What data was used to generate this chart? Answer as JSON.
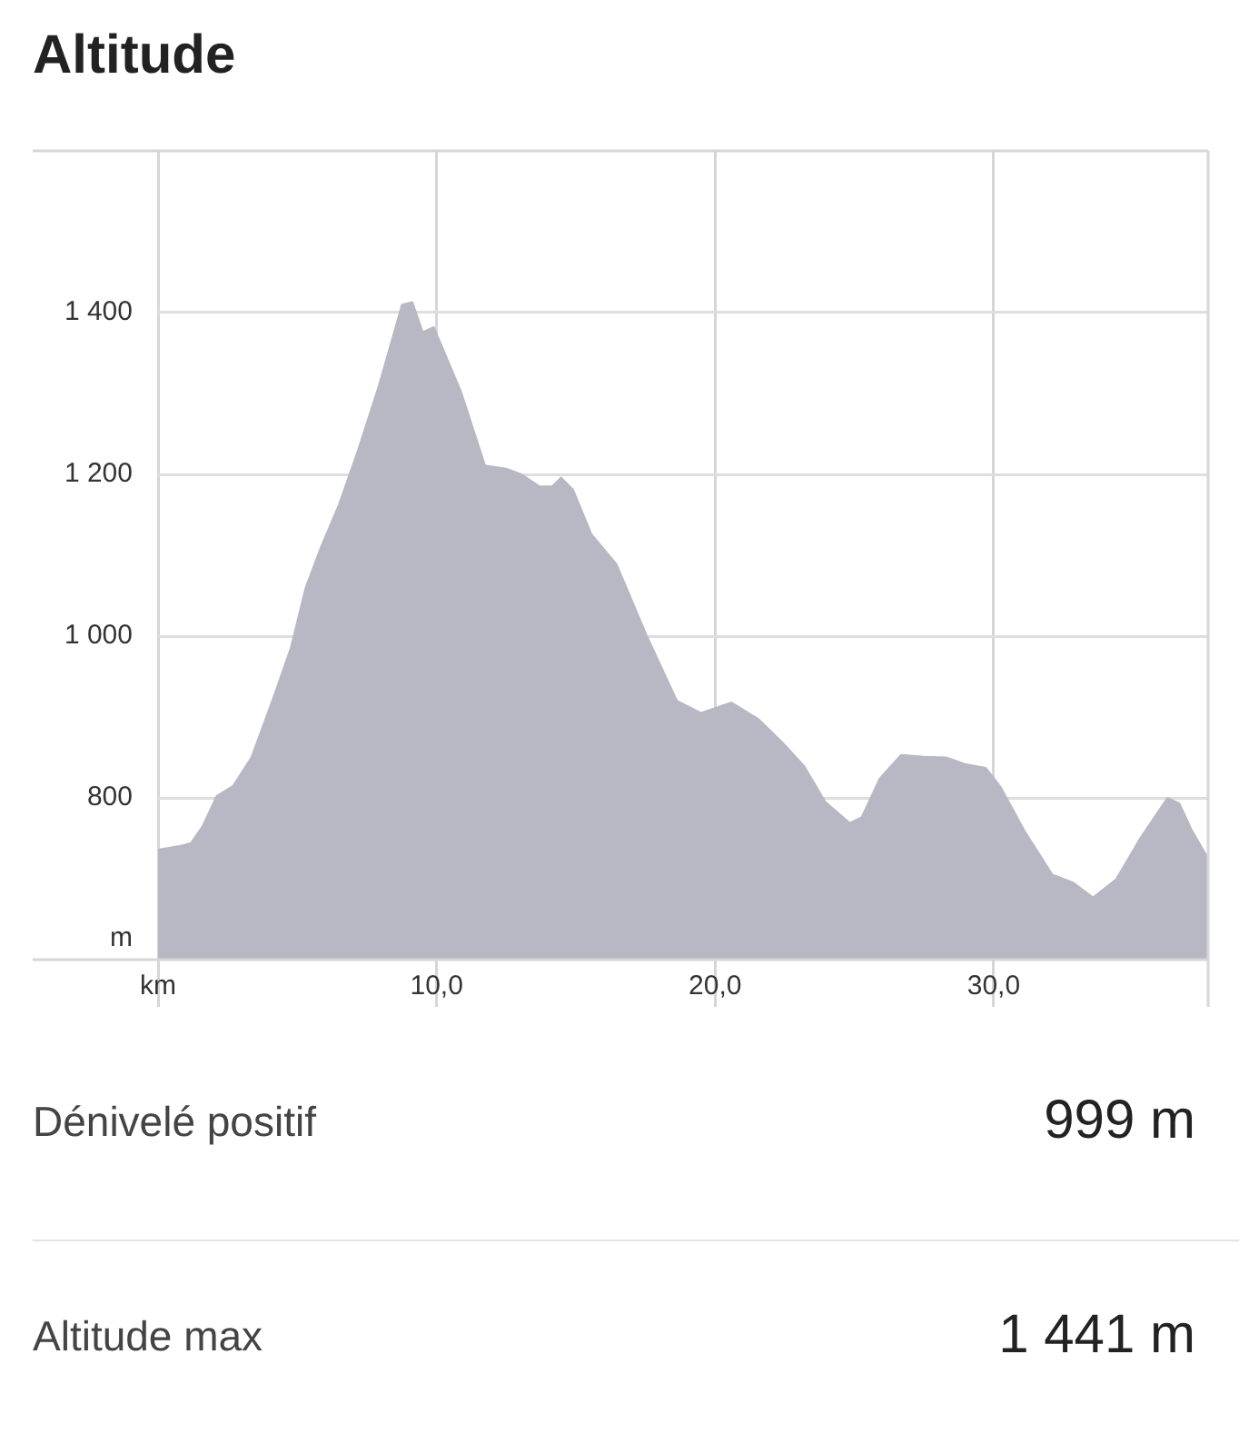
{
  "chart_data": {
    "type": "area",
    "title": "Altitude",
    "ylabel": "m",
    "x": [
      0,
      0.85,
      1.18,
      1.6,
      2.1,
      2.7,
      3.35,
      4.1,
      4.77,
      5.3,
      5.86,
      6.5,
      7.17,
      7.93,
      8.76,
      9.13,
      9.5,
      9.9,
      10.87,
      11.74,
      12.5,
      13.05,
      13.7,
      14.14,
      14.47,
      14.9,
      15.56,
      16.46,
      17.54,
      18.63,
      19.5,
      20.59,
      21.57,
      22.43,
      23.2,
      23.96,
      24.83,
      25.26,
      25.91,
      26.67,
      27.43,
      28.3,
      28.96,
      29.72,
      30.26,
      31.13,
      32.11,
      32.87,
      33.57,
      34.39,
      35.26,
      36.24,
      36.67,
      37.1,
      37.7
    ],
    "series": [
      {
        "color": "#b8b8c4",
        "values": [
          736,
          741,
          744,
          765,
          802,
          815,
          850,
          920,
          986,
          1060,
          1111,
          1163,
          1229,
          1310,
          1410,
          1413,
          1376,
          1382,
          1303,
          1211,
          1207,
          1200,
          1185,
          1185,
          1196,
          1181,
          1126,
          1089,
          1001,
          920,
          905,
          918,
          897,
          868,
          839,
          795,
          769,
          776,
          824,
          853,
          851,
          850,
          842,
          837,
          813,
          758,
          705,
          695,
          677,
          699,
          750,
          800,
          793,
          761,
          725
        ]
      }
    ],
    "xlim": [
      0,
      37.7
    ],
    "ylim": [
      600,
      1600
    ],
    "xticks": [
      {
        "value": 0,
        "label": "km"
      },
      {
        "value": 10,
        "label": "10,0"
      },
      {
        "value": 20,
        "label": "20,0"
      },
      {
        "value": 30,
        "label": "30,0"
      }
    ],
    "yticks": [
      {
        "value": 800,
        "label": "800"
      },
      {
        "value": 1000,
        "label": "1 000"
      },
      {
        "value": 1200,
        "label": "1 200"
      },
      {
        "value": 1400,
        "label": "1 400"
      }
    ],
    "grid": true,
    "legend": false,
    "marker": "none",
    "annotations": [
      "Dénivelé positif",
      "999 m",
      "Altitude max",
      "1 441 m"
    ]
  }
}
